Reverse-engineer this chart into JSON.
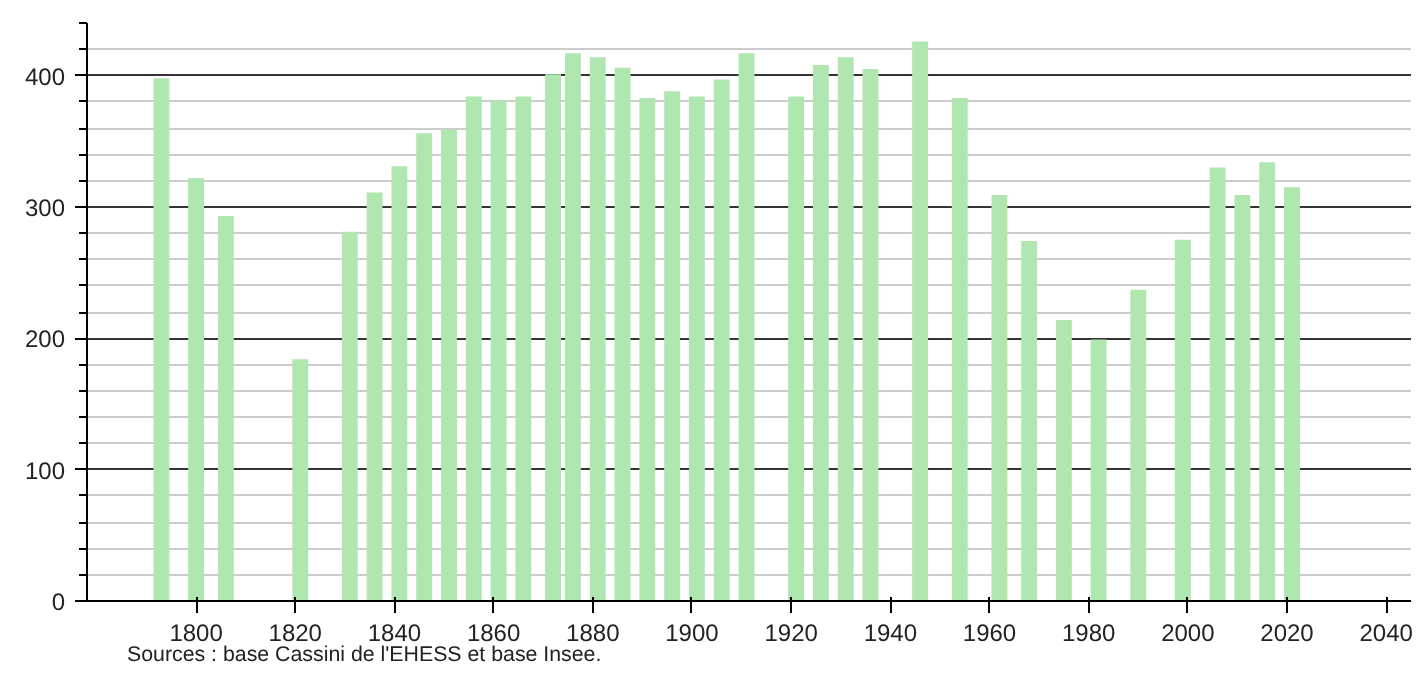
{
  "chart_data": {
    "type": "bar",
    "color": "#b0e6b0",
    "x": [
      1793,
      1800,
      1806,
      1821,
      1831,
      1836,
      1841,
      1846,
      1851,
      1856,
      1861,
      1866,
      1872,
      1876,
      1881,
      1886,
      1891,
      1896,
      1901,
      1906,
      1911,
      1921,
      1926,
      1931,
      1936,
      1946,
      1954,
      1962,
      1968,
      1975,
      1982,
      1990,
      1999,
      2006,
      2011,
      2016,
      2021
    ],
    "values": [
      398,
      322,
      293,
      184,
      281,
      311,
      331,
      356,
      359,
      384,
      381,
      384,
      401,
      417,
      414,
      406,
      383,
      388,
      384,
      397,
      417,
      384,
      408,
      414,
      405,
      426,
      383,
      309,
      274,
      214,
      199,
      237,
      275,
      330,
      309,
      334,
      315
    ],
    "xlim": [
      1778,
      2045
    ],
    "xticks": [
      1800,
      1820,
      1840,
      1860,
      1880,
      1900,
      1920,
      1940,
      1960,
      1980,
      2000,
      2020,
      2040
    ],
    "ylim": [
      0,
      440
    ],
    "yticks": [
      0,
      {
        "value": 20,
        "label": null
      },
      {
        "value": 40,
        "label": null
      },
      {
        "value": 60,
        "label": null
      },
      {
        "value": 80,
        "label": null
      },
      100,
      {
        "value": 120,
        "label": null
      },
      {
        "value": 140,
        "label": null
      },
      {
        "value": 160,
        "label": null
      },
      {
        "value": 180,
        "label": null
      },
      200,
      {
        "value": 220,
        "label": null
      },
      {
        "value": 240,
        "label": null
      },
      {
        "value": 260,
        "label": null
      },
      {
        "value": 280,
        "label": null
      },
      300,
      {
        "value": 320,
        "label": null
      },
      {
        "value": 340,
        "label": null
      },
      {
        "value": 360,
        "label": null
      },
      {
        "value": 380,
        "label": null
      },
      400,
      {
        "value": 420,
        "label": null
      },
      {
        "value": 440,
        "label": null
      }
    ],
    "grid": "y",
    "annotations": [
      "Sources : base Cassini de l'EHESS et base Insee."
    ]
  }
}
